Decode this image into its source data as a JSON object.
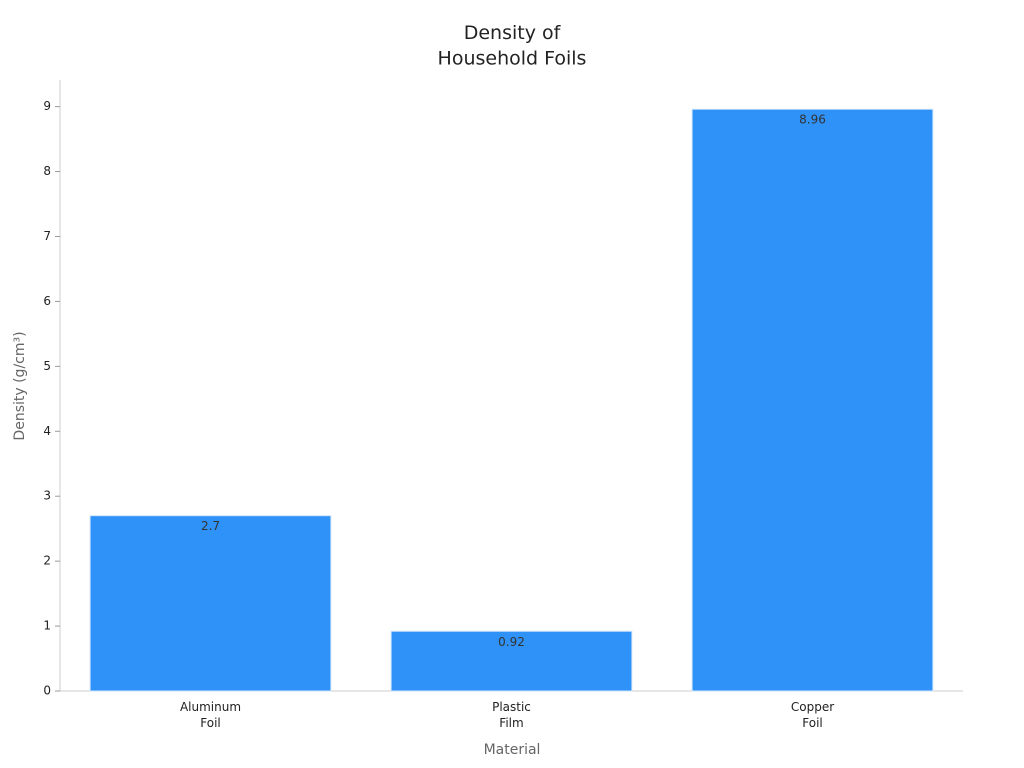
{
  "chart_data": {
    "type": "bar",
    "title": "Density of\nHousehold Foils",
    "x_label": "Material",
    "y_label": "Density (g/cm³)",
    "categories": [
      "Aluminum\nFoil",
      "Plastic\nFilm",
      "Copper\nFoil"
    ],
    "values": [
      2.7,
      0.92,
      8.96
    ],
    "color": "#2f92f8",
    "ylim": [
      0,
      9.41
    ],
    "yticks": [
      0,
      1,
      2,
      3,
      4,
      5,
      6,
      7,
      8,
      9
    ],
    "grid": false
  }
}
